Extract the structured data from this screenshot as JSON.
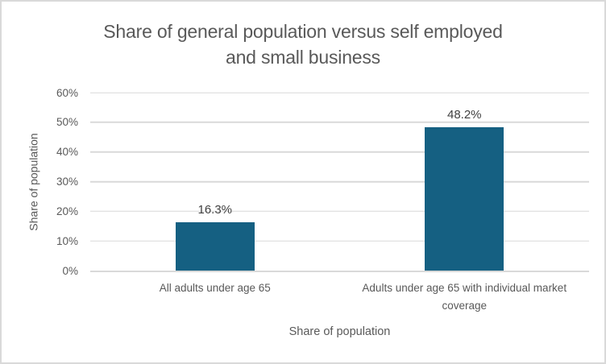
{
  "chart_data": {
    "type": "bar",
    "title": "Share of general population versus self employed and small business",
    "title_lines": [
      "Share of general population versus self employed",
      "and small business"
    ],
    "xlabel": "Share of population",
    "ylabel": "Share of population",
    "categories": [
      "All adults under age 65",
      "Adults under age 65 with individual market coverage"
    ],
    "values": [
      16.3,
      48.2
    ],
    "value_labels": [
      "16.3%",
      "48.2%"
    ],
    "ylim": [
      0,
      60
    ],
    "yticks": [
      {
        "value": 0,
        "label": "0%"
      },
      {
        "value": 10,
        "label": "10%"
      },
      {
        "value": 20,
        "label": "20%"
      },
      {
        "value": 30,
        "label": "30%"
      },
      {
        "value": 40,
        "label": "40%"
      },
      {
        "value": 50,
        "label": "50%"
      },
      {
        "value": 60,
        "label": "60%"
      }
    ],
    "grid": true,
    "legend_position": "none",
    "colors": {
      "bar": "#156082",
      "title_text": "#595959",
      "axis_text": "#595959",
      "data_label_text": "#404040",
      "gridline": "#d9d9d9",
      "border": "#d9d9d9",
      "background": "#ffffff"
    }
  }
}
